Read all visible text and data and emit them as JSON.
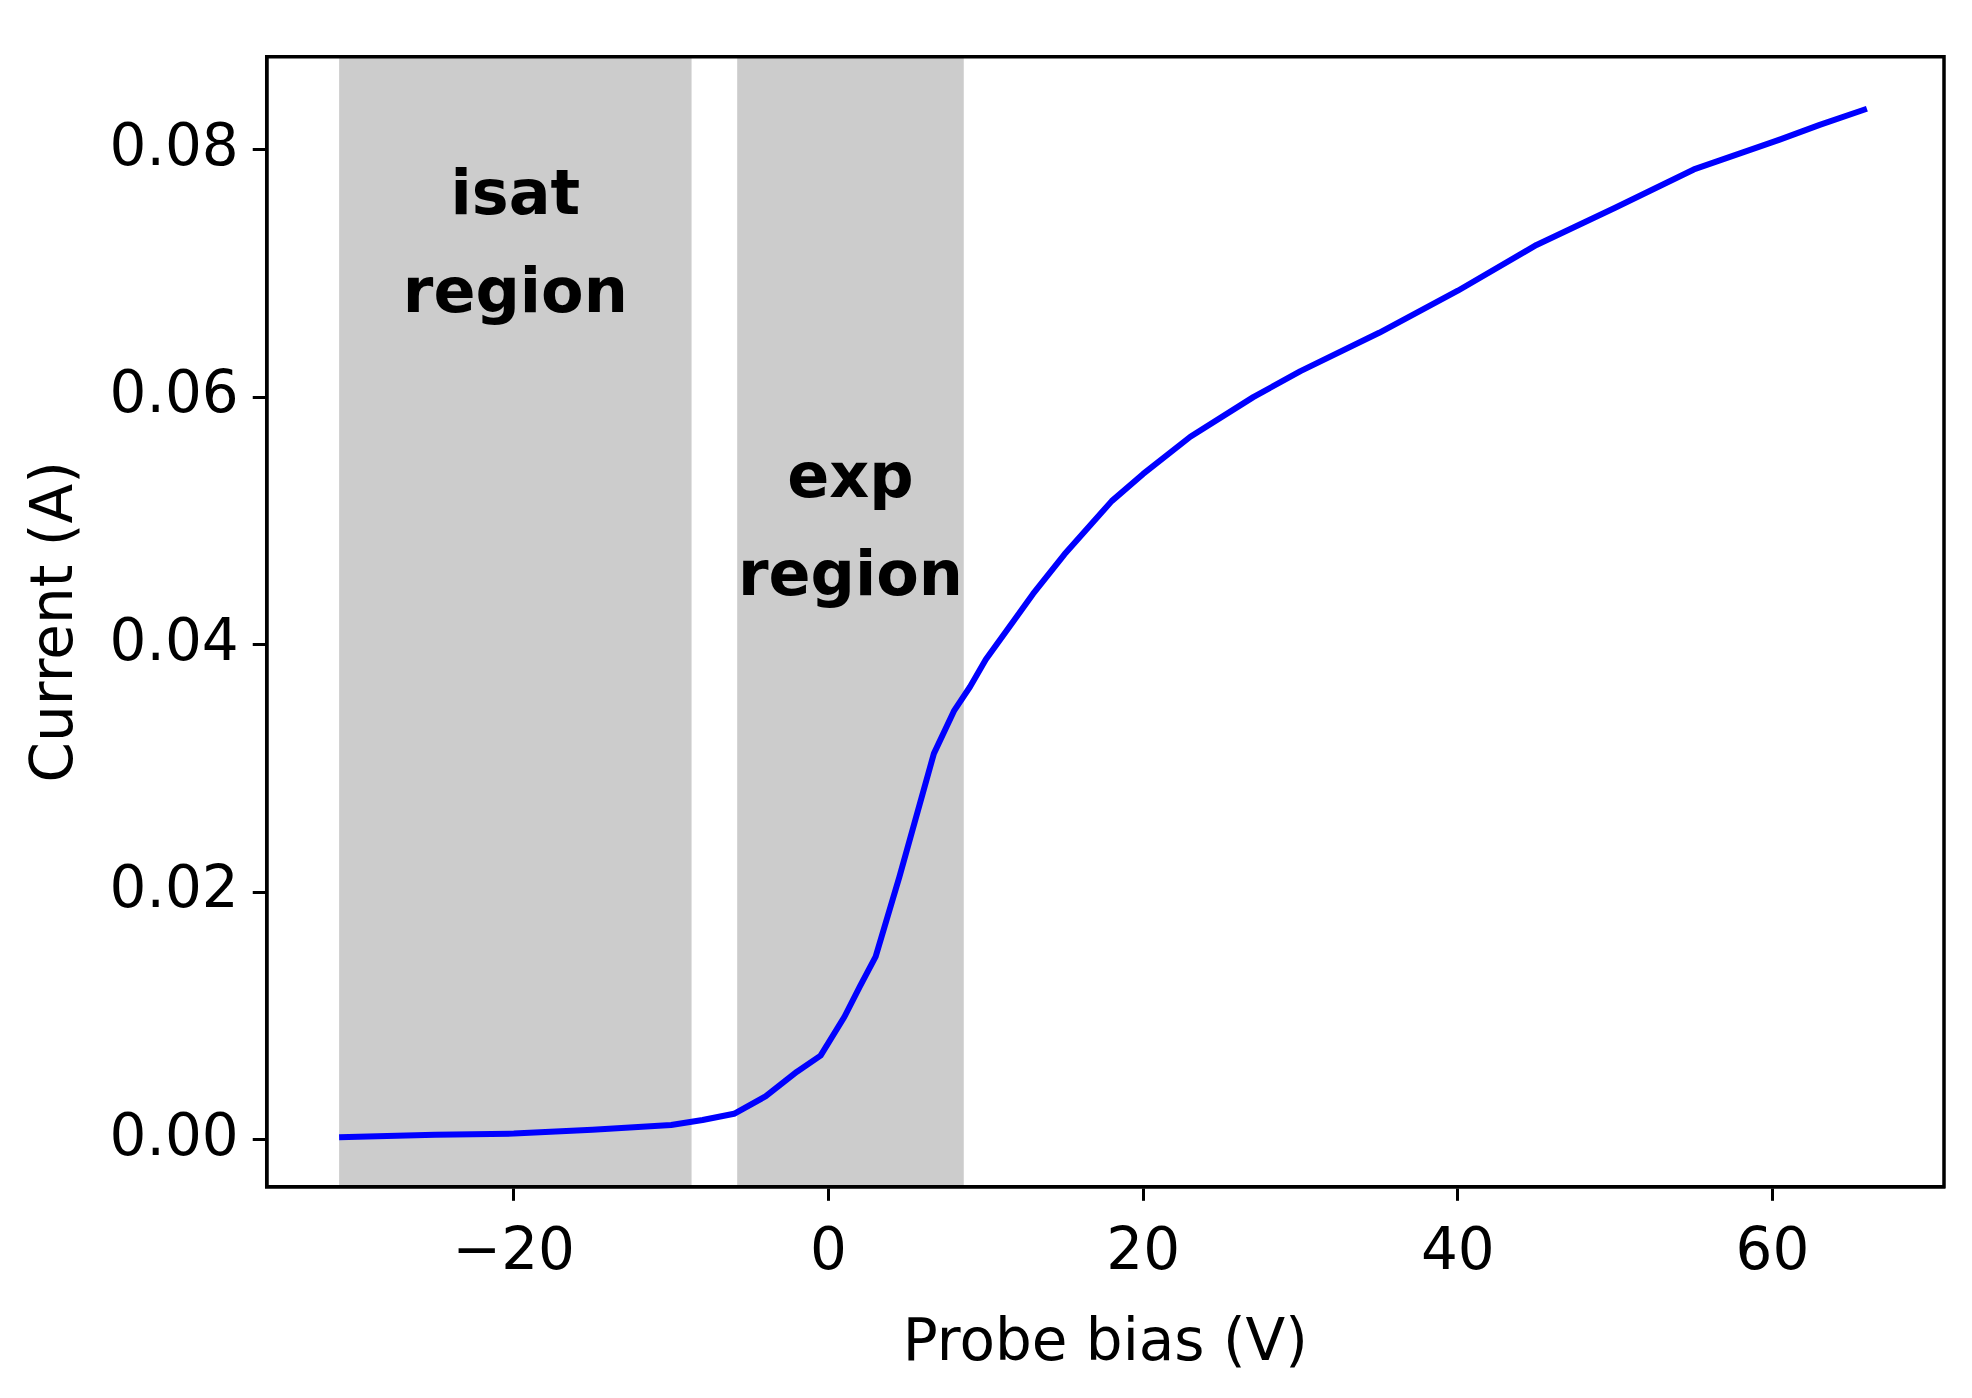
{
  "chart_data": {
    "type": "line",
    "xlabel": "Probe bias (V)",
    "ylabel": "Current (A)",
    "xlim": [
      -35.7,
      70.9
    ],
    "ylim": [
      -0.0038,
      0.0875
    ],
    "xticks": [
      {
        "value": -20,
        "label": "−20"
      },
      0,
      20,
      40,
      60
    ],
    "yticks": [
      {
        "value": 0,
        "label": "0.00"
      },
      {
        "value": 0.02,
        "label": "0.02"
      },
      {
        "value": 0.04,
        "label": "0.04"
      },
      {
        "value": 0.06,
        "label": "0.06"
      },
      {
        "value": 0.08,
        "label": "0.08"
      }
    ],
    "grid": false,
    "legend": false,
    "marker": "none",
    "line_style": "solid",
    "bands": [
      {
        "axis": "x",
        "from": -31.1,
        "to": -8.7,
        "label": "isat\nregion",
        "color": "#cccccc"
      },
      {
        "axis": "x",
        "from": -5.8,
        "to": 8.6,
        "label": "exp\nregion",
        "color": "#cccccc"
      }
    ],
    "series": [
      {
        "color": "#0000ff",
        "x": [
          -31.1,
          -25,
          -20,
          -15,
          -10,
          -8,
          -6,
          -4,
          -2,
          -0.5,
          1,
          2,
          3,
          4.5,
          6.7,
          8,
          9,
          10,
          13,
          15,
          18,
          20,
          23,
          27,
          30,
          35,
          40,
          45,
          50,
          55,
          60,
          63,
          66
        ],
        "values": [
          0.0002,
          0.0004,
          0.0005,
          0.0008,
          0.0012,
          0.0016,
          0.0021,
          0.0035,
          0.0055,
          0.0068,
          0.0099,
          0.0124,
          0.0148,
          0.0212,
          0.0312,
          0.0347,
          0.0366,
          0.0388,
          0.0441,
          0.0473,
          0.0516,
          0.0538,
          0.0568,
          0.06,
          0.0621,
          0.0652,
          0.0686,
          0.0723,
          0.0753,
          0.0784,
          0.0806,
          0.082,
          0.0833
        ]
      }
    ]
  }
}
